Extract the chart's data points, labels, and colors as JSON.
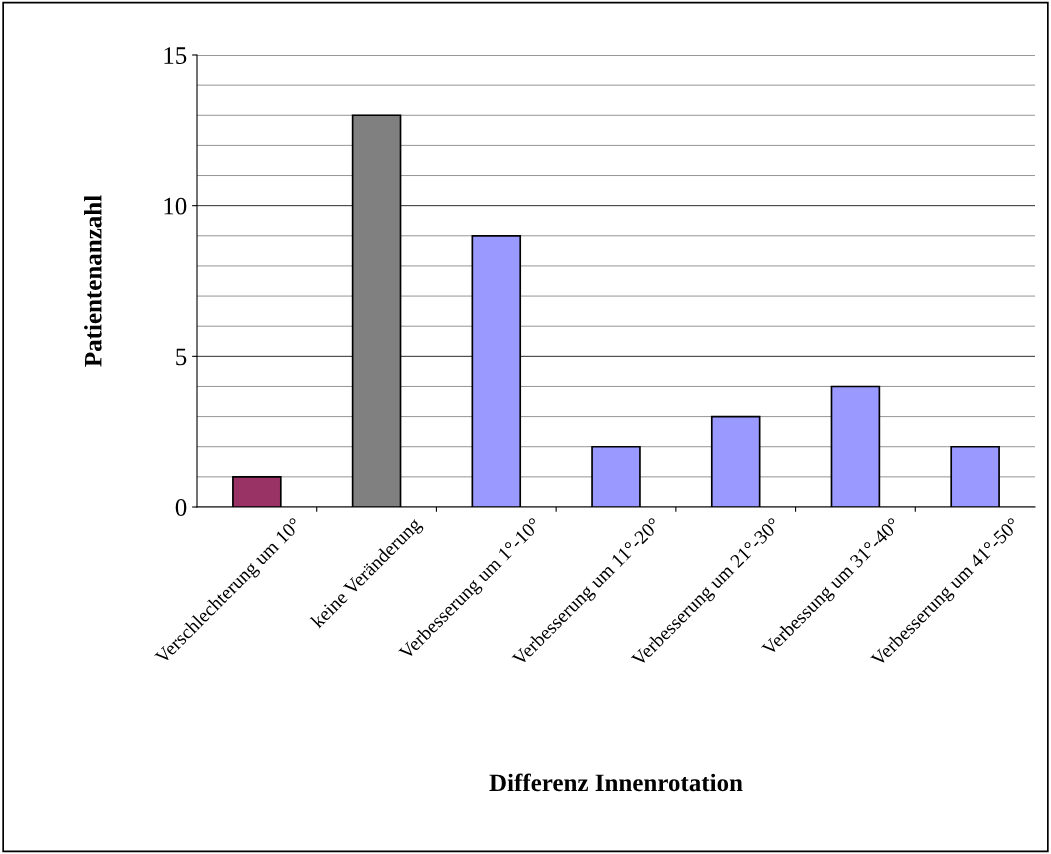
{
  "chart_data": {
    "type": "bar",
    "xlabel": "Differenz Innenrotation",
    "ylabel": "Patientenanzahl",
    "categories": [
      "Verschlechterung um 10°",
      "keine Veränderung",
      "Verbesserung um 1°-10°",
      "Verbesserung um 11°-20°",
      "Verbesserung um 21°-30°",
      "Verbessung um 31°-40°",
      "Verbesserung um 41°-50°"
    ],
    "values": [
      1,
      13,
      9,
      2,
      3,
      4,
      2
    ],
    "colors": [
      "#993366",
      "#808080",
      "#9999ff",
      "#9999ff",
      "#9999ff",
      "#9999ff",
      "#9999ff"
    ],
    "ylim": [
      0,
      15
    ],
    "yticks": [
      0,
      {
        "value": 1,
        "label": null
      },
      {
        "value": 2,
        "label": null
      },
      {
        "value": 3,
        "label": null
      },
      {
        "value": 4,
        "label": null
      },
      5,
      {
        "value": 6,
        "label": null
      },
      {
        "value": 7,
        "label": null
      },
      {
        "value": 8,
        "label": null
      },
      {
        "value": 9,
        "label": null
      },
      10,
      {
        "value": 11,
        "label": null
      },
      {
        "value": 12,
        "label": null
      },
      {
        "value": 13,
        "label": null
      },
      {
        "value": 14,
        "label": null
      },
      15
    ],
    "grid": "y",
    "legend": false
  }
}
